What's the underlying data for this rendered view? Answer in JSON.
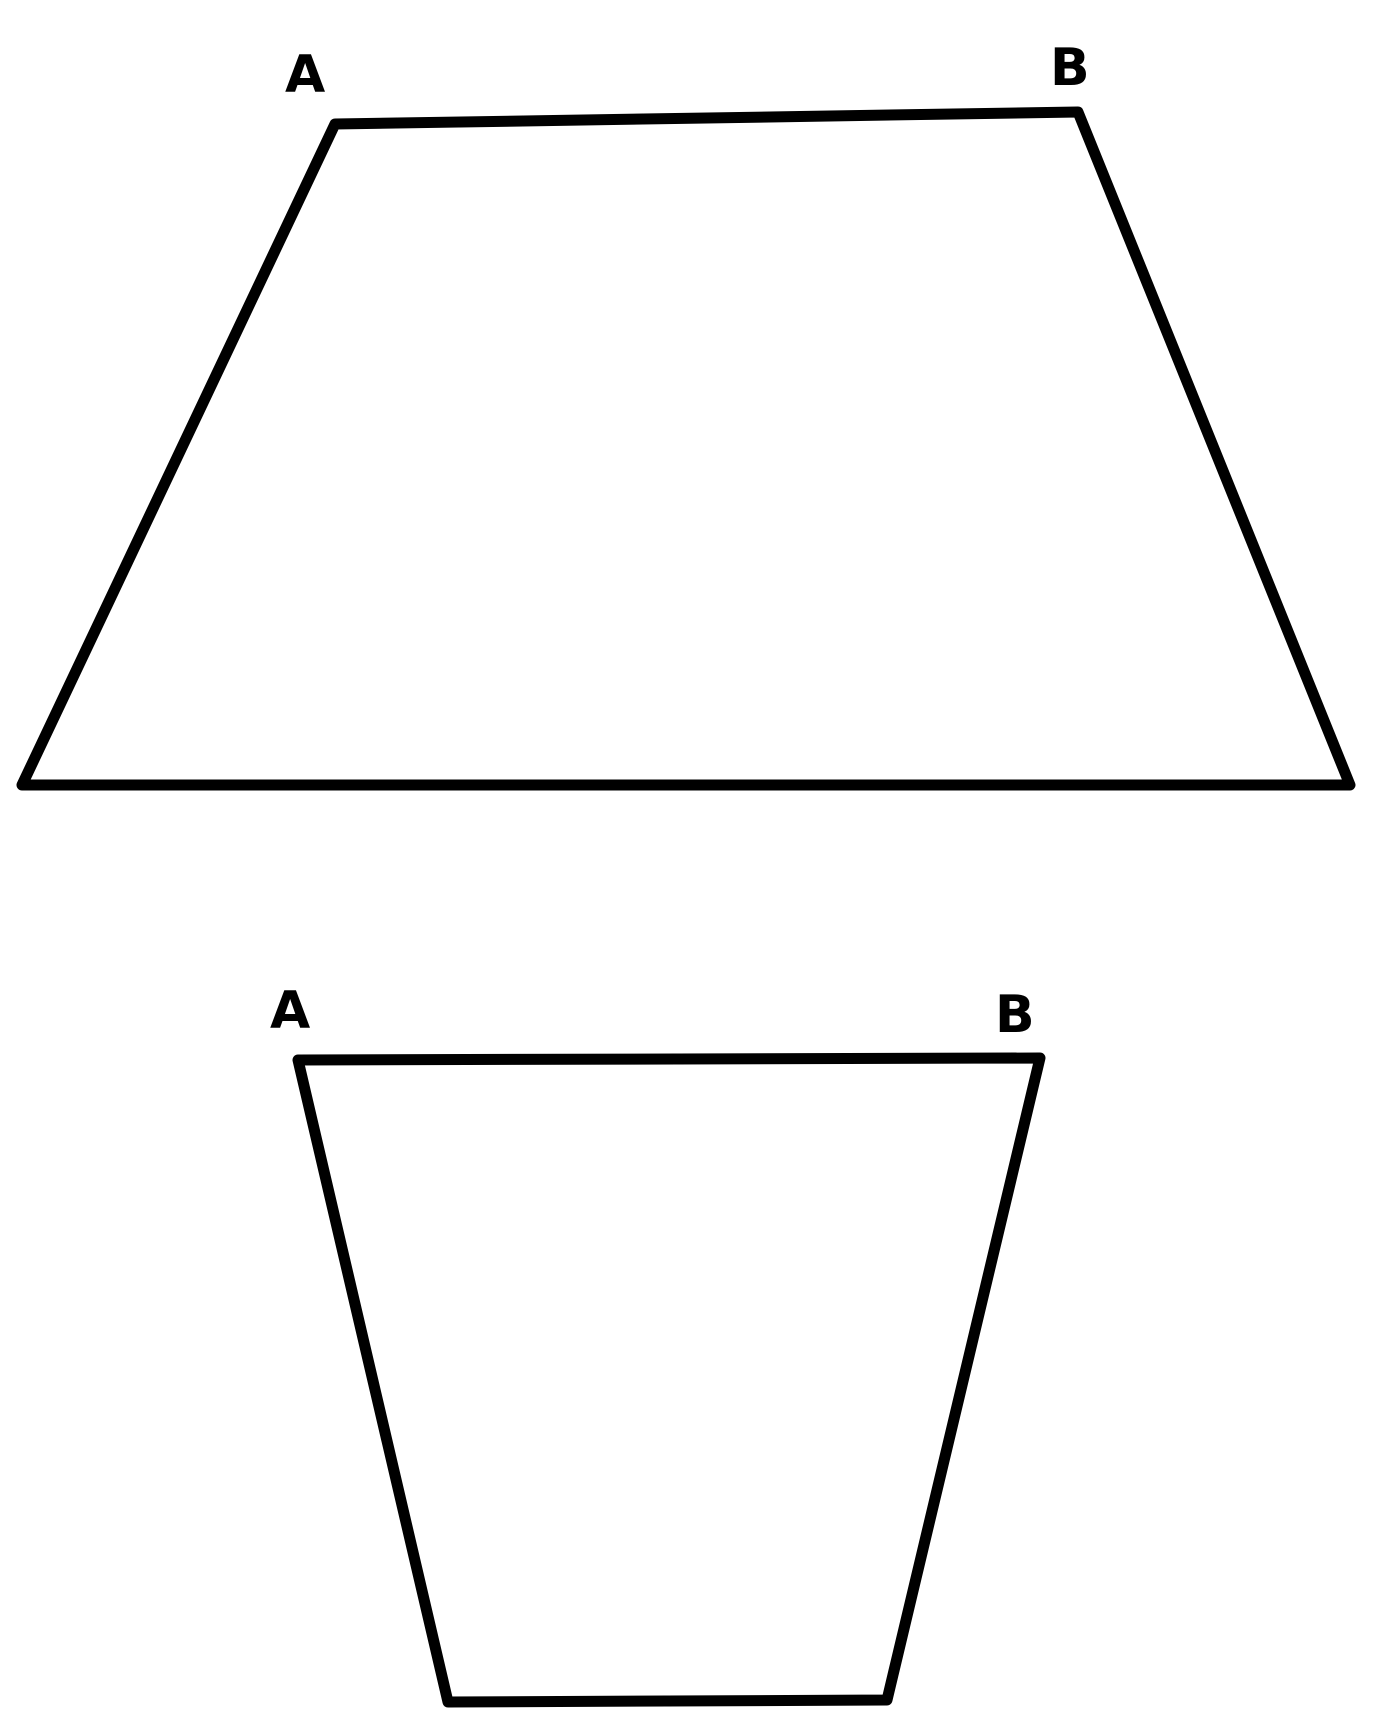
{
  "figures": [
    {
      "shape": "wide trapezoid",
      "labels": {
        "top_left": "A",
        "top_right": "B"
      }
    },
    {
      "shape": "narrow trapezoid",
      "labels": {
        "top_left": "A",
        "top_right": "B"
      }
    }
  ]
}
